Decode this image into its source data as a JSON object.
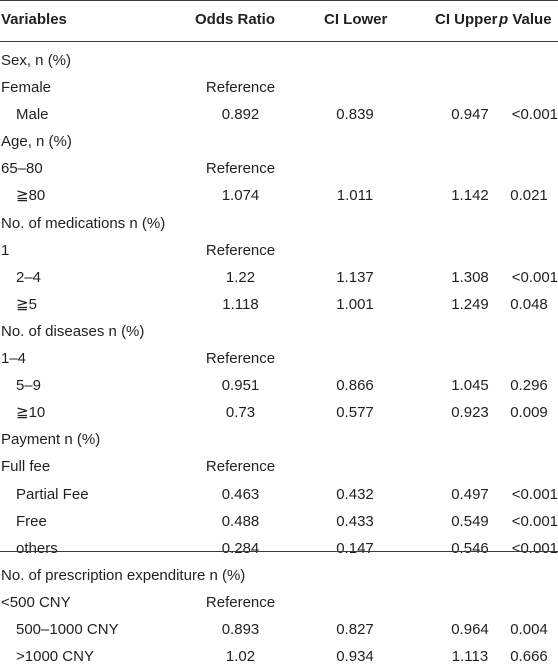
{
  "header": {
    "variables": "Variables",
    "odds_ratio": "Odds Ratio",
    "ci_lower": "CI Lower",
    "ci_upper": "CI Upper",
    "p_label": "p",
    "value_label": " Value"
  },
  "rows": [
    {
      "label": "Sex, n (%)",
      "or": "",
      "cl": "",
      "cu": "",
      "p": "",
      "sub": false
    },
    {
      "label": "Female",
      "or": "Reference",
      "cl": "",
      "cu": "",
      "p": "",
      "sub": false
    },
    {
      "label": "Male",
      "or": "0.892",
      "cl": "0.839",
      "cu": "0.947",
      "p": "<0.001",
      "sub": true
    },
    {
      "label": "Age, n (%)",
      "or": "",
      "cl": "",
      "cu": "",
      "p": "",
      "sub": false
    },
    {
      "label": "65–80",
      "or": "Reference",
      "cl": "",
      "cu": "",
      "p": "",
      "sub": false
    },
    {
      "label": "≧80",
      "or": "1.074",
      "cl": "1.011",
      "cu": "1.142",
      "p": "0.021",
      "sub": true
    },
    {
      "label": "No. of medications n (%)",
      "or": "",
      "cl": "",
      "cu": "",
      "p": "",
      "sub": false
    },
    {
      "label": "1",
      "or": "Reference",
      "cl": "",
      "cu": "",
      "p": "",
      "sub": false
    },
    {
      "label": "2–4",
      "or": "1.22",
      "cl": "1.137",
      "cu": "1.308",
      "p": "<0.001",
      "sub": true
    },
    {
      "label": "≧5",
      "or": "1.118",
      "cl": "1.001",
      "cu": "1.249",
      "p": "0.048",
      "sub": true
    },
    {
      "label": "No. of diseases n (%)",
      "or": "",
      "cl": "",
      "cu": "",
      "p": "",
      "sub": false
    },
    {
      "label": "1–4",
      "or": "Reference",
      "cl": "",
      "cu": "",
      "p": "",
      "sub": false
    },
    {
      "label": "5–9",
      "or": "0.951",
      "cl": "0.866",
      "cu": "1.045",
      "p": "0.296",
      "sub": true
    },
    {
      "label": "≧10",
      "or": "0.73",
      "cl": "0.577",
      "cu": "0.923",
      "p": "0.009",
      "sub": true
    },
    {
      "label": "Payment n (%)",
      "or": "",
      "cl": "",
      "cu": "",
      "p": "",
      "sub": false
    },
    {
      "label": "Full fee",
      "or": "Reference",
      "cl": "",
      "cu": "",
      "p": "",
      "sub": false
    },
    {
      "label": "Partial Fee",
      "or": "0.463",
      "cl": "0.432",
      "cu": "0.497",
      "p": "<0.001",
      "sub": true
    },
    {
      "label": "Free",
      "or": "0.488",
      "cl": "0.433",
      "cu": "0.549",
      "p": "<0.001",
      "sub": true
    },
    {
      "label": "others",
      "or": "0.284",
      "cl": "0.147",
      "cu": "0.546",
      "p": "<0.001",
      "sub": true
    },
    {
      "label": "No. of prescription expenditure n (%)",
      "or": "",
      "cl": "",
      "cu": "",
      "p": "",
      "sub": false
    },
    {
      "label": "<500 CNY",
      "or": "Reference",
      "cl": "",
      "cu": "",
      "p": "",
      "sub": false
    },
    {
      "label": "500–1000 CNY",
      "or": "0.893",
      "cl": "0.827",
      "cu": "0.964",
      "p": "0.004",
      "sub": true
    },
    {
      "label": ">1000 CNY",
      "or": "1.02",
      "cl": "0.934",
      "cu": "1.113",
      "p": "0.666",
      "sub": true
    }
  ]
}
